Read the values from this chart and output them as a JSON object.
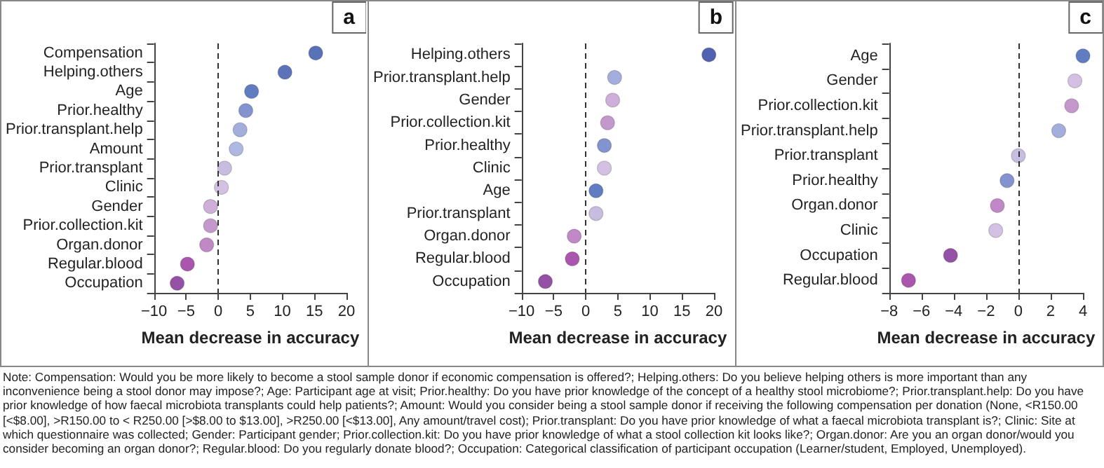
{
  "chart_data": [
    {
      "type": "scatter",
      "title": "a",
      "xlabel": "Mean decrease in accuracy",
      "orientation": "horizontal",
      "categories": [
        "Compensation",
        "Helping.others",
        "Age",
        "Prior.healthy",
        "Prior.transplant.help",
        "Amount",
        "Prior.transplant",
        "Clinic",
        "Gender",
        "Prior.collection.kit",
        "Organ.donor",
        "Regular.blood",
        "Occupation"
      ],
      "values": [
        15.2,
        10.4,
        5.2,
        4.3,
        3.4,
        2.8,
        1.0,
        0.5,
        -1.2,
        -1.2,
        -1.8,
        -4.8,
        -6.4
      ],
      "colors": [
        "#2e4fa6",
        "#3350a8",
        "#3a5db3",
        "#6478c4",
        "#8c9ad4",
        "#9aa6d8",
        "#b8acd8",
        "#c9b0dc",
        "#c39bd0",
        "#b67ec0",
        "#b06ab8",
        "#952a9a",
        "#7a2590"
      ],
      "xlim": [
        -10,
        20
      ],
      "xticks": [
        -10,
        -5,
        0,
        5,
        10,
        15,
        20
      ],
      "marker": "circle",
      "grid": false,
      "ref_lines": [
        {
          "axis": "x",
          "value": 0,
          "line_style": "dashed"
        }
      ],
      "annotations": [
        "Note: Compensation: Would you be more likely to become a stool sample donor if economic compensation is offered?; Helping.others: Do you believe helping others is more important than any inconvenience being a stool donor may impose?; Age: Participant age at visit; Prior.healthy: Do you have prior knowledge of the concept of a healthy stool microbiome?; Prior.transplant.help: Do you have prior knowledge of how faecal microbiota transplants could help patients?; Amount: Would you consider being a stool sample donor if receiving the following compensation per donation (None, <R150.00 [<$8.00], >R150.00 to < R250.00 [>$8.00 to $13.00], >R250.00 [<$13.00], Any amount/travel cost); Prior.transplant: Do you have prior knowledge of what a faecal microbiota transplant is?; Clinic: Site at which questionnaire was collected; Gender: Participant gender; Prior.collection.kit: Do you have prior knowledge of what a stool collection kit looks like?; Organ.donor: Are you an organ donor/would you consider becoming an organ donor?; Regular.blood: Do you regularly donate blood?; Occupation: Categorical classification of participant occupation (Learner/student, Employed, Unemployed)."
      ]
    },
    {
      "type": "scatter",
      "title": "b",
      "xlabel": "Mean decrease in accuracy",
      "orientation": "horizontal",
      "categories": [
        "Helping.others",
        "Prior.transplant.help",
        "Gender",
        "Prior.collection.kit",
        "Prior.healthy",
        "Clinic",
        "Age",
        "Prior.transplant",
        "Organ.donor",
        "Regular.blood",
        "Occupation"
      ],
      "values": [
        19.2,
        4.5,
        4.2,
        3.4,
        2.9,
        2.9,
        1.6,
        1.6,
        -1.8,
        -2.1,
        -6.3
      ],
      "colors": [
        "#253c9c",
        "#8c9ad4",
        "#c39bd0",
        "#b67ec0",
        "#6478c4",
        "#c9b0dc",
        "#3a5db3",
        "#b8acd8",
        "#b06ab8",
        "#952a9a",
        "#7a2590"
      ],
      "xlim": [
        -10,
        20
      ],
      "xticks": [
        -10,
        -5,
        0,
        5,
        10,
        15,
        20
      ],
      "marker": "circle",
      "grid": false,
      "ref_lines": [
        {
          "axis": "x",
          "value": 0,
          "line_style": "dashed"
        }
      ]
    },
    {
      "type": "scatter",
      "title": "c",
      "xlabel": "Mean decrease in accuracy",
      "orientation": "horizontal",
      "categories": [
        "Age",
        "Gender",
        "Prior.collection.kit",
        "Prior.transplant.help",
        "Prior.transplant",
        "Prior.healthy",
        "Organ.donor",
        "Clinic",
        "Occupation",
        "Regular.blood"
      ],
      "values": [
        4.0,
        3.5,
        3.3,
        2.5,
        0.0,
        -0.7,
        -1.3,
        -1.4,
        -4.2,
        -6.8
      ],
      "colors": [
        "#3a5db3",
        "#c9b0dc",
        "#b67ec0",
        "#8c9ad4",
        "#b8acd8",
        "#6478c4",
        "#b06ab8",
        "#c9b0dc",
        "#7a2590",
        "#952a9a"
      ],
      "xlim": [
        -8,
        4
      ],
      "xticks": [
        -8,
        -6,
        -4,
        -2,
        0,
        2,
        4
      ],
      "marker": "circle",
      "grid": false,
      "ref_lines": [
        {
          "axis": "x",
          "value": 0,
          "line_style": "dashed"
        }
      ]
    }
  ]
}
